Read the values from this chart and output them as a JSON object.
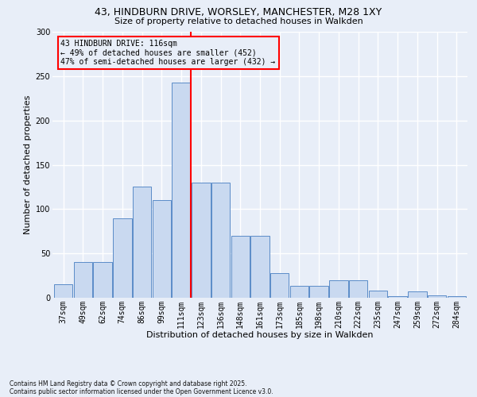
{
  "title_line1": "43, HINDBURN DRIVE, WORSLEY, MANCHESTER, M28 1XY",
  "title_line2": "Size of property relative to detached houses in Walkden",
  "xlabel": "Distribution of detached houses by size in Walkden",
  "ylabel": "Number of detached properties",
  "footnote": "Contains HM Land Registry data © Crown copyright and database right 2025.\nContains public sector information licensed under the Open Government Licence v3.0.",
  "bin_labels": [
    "37sqm",
    "49sqm",
    "62sqm",
    "74sqm",
    "86sqm",
    "99sqm",
    "111sqm",
    "123sqm",
    "136sqm",
    "148sqm",
    "161sqm",
    "173sqm",
    "185sqm",
    "198sqm",
    "210sqm",
    "222sqm",
    "235sqm",
    "247sqm",
    "259sqm",
    "272sqm",
    "284sqm"
  ],
  "bar_values": [
    15,
    40,
    40,
    90,
    125,
    110,
    243,
    130,
    130,
    70,
    70,
    28,
    13,
    13,
    20,
    20,
    8,
    2,
    7,
    3,
    2
  ],
  "bar_color": "#c9d9f0",
  "bar_edge_color": "#5b8cc8",
  "vline_index": 6,
  "vline_color": "red",
  "annotation_text": "43 HINDBURN DRIVE: 116sqm\n← 49% of detached houses are smaller (452)\n47% of semi-detached houses are larger (432) →",
  "annotation_box_edge_color": "red",
  "ylim": [
    0,
    300
  ],
  "yticks": [
    0,
    50,
    100,
    150,
    200,
    250,
    300
  ],
  "bg_color": "#e8eef8",
  "grid_color": "#ffffff",
  "title_fontsize": 9,
  "subtitle_fontsize": 8,
  "xlabel_fontsize": 8,
  "ylabel_fontsize": 8,
  "tick_fontsize": 7,
  "annotation_fontsize": 7,
  "footnote_fontsize": 5.5
}
